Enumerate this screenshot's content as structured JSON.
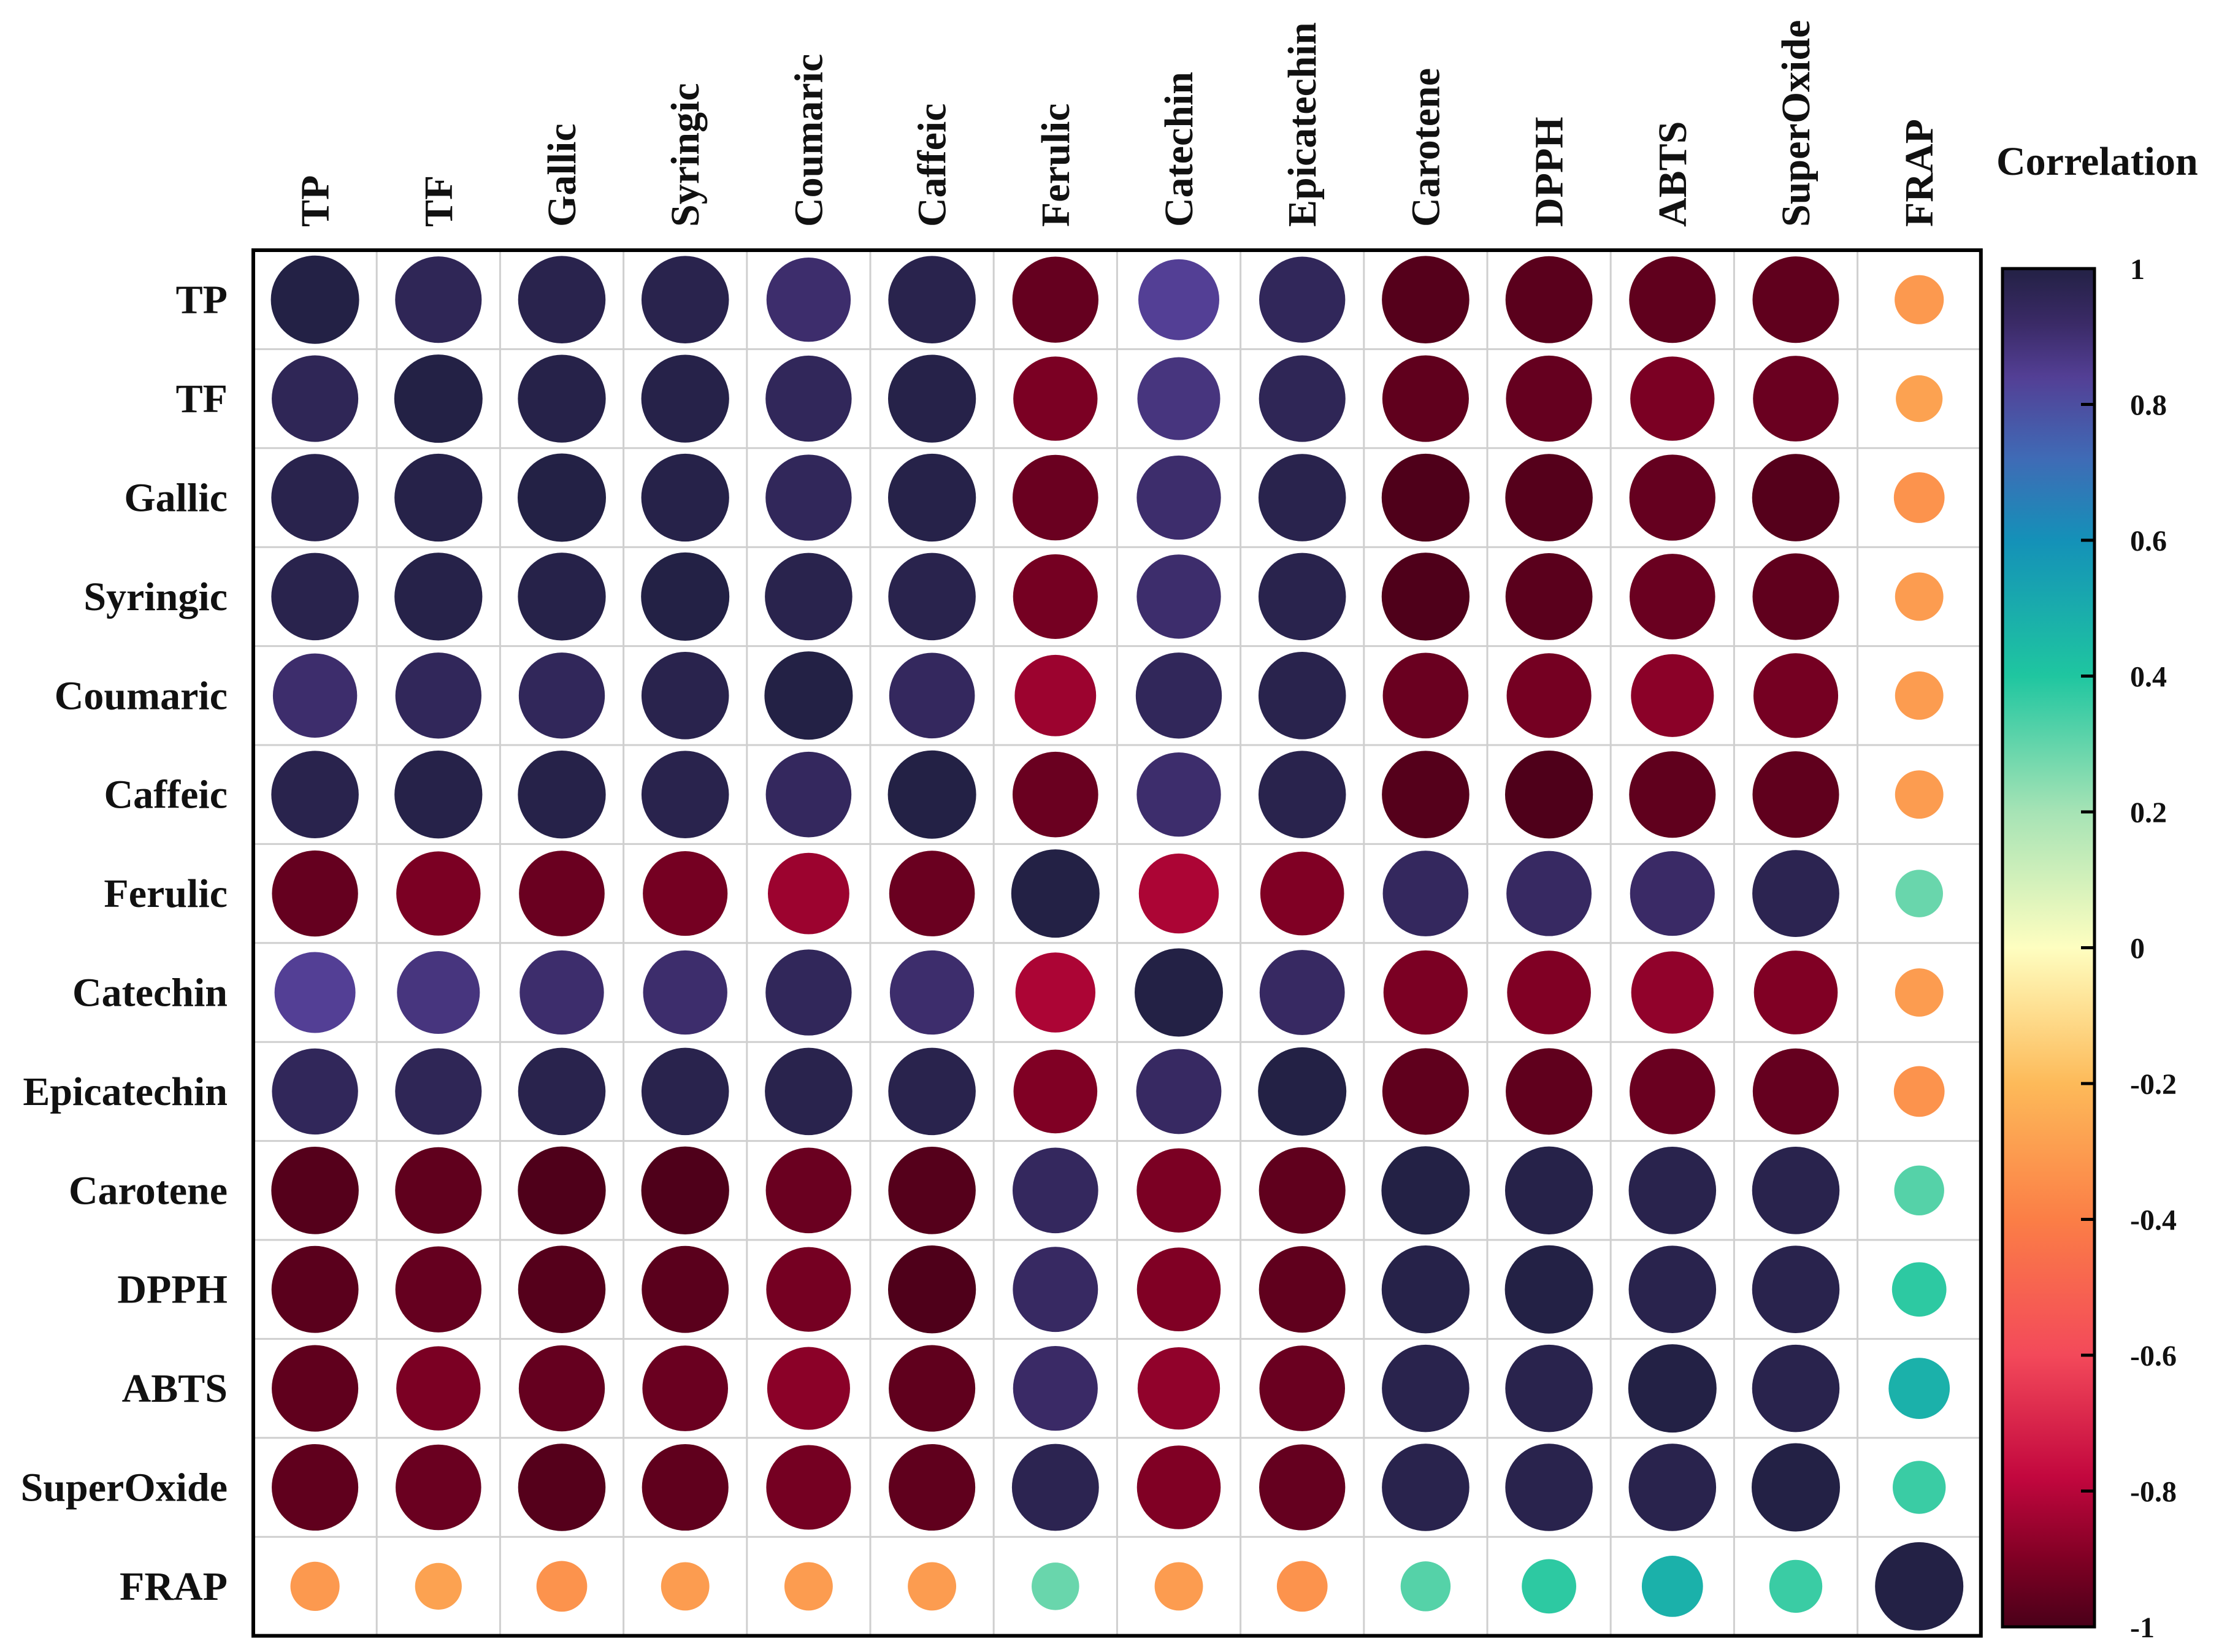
{
  "chart_data": {
    "type": "heatmap",
    "subtype": "correlation-circle-matrix",
    "variables": [
      "TP",
      "TF",
      "Gallic",
      "Syringic",
      "Coumaric",
      "Caffeic",
      "Ferulic",
      "Catechin",
      "Epicatechin",
      "Carotene",
      "DPPH",
      "ABTS",
      "SuperOxide",
      "FRAP"
    ],
    "matrix": [
      [
        1.0,
        0.96,
        0.98,
        0.98,
        0.91,
        0.98,
        -0.95,
        0.84,
        0.95,
        -0.98,
        -0.97,
        -0.96,
        -0.96,
        -0.31
      ],
      [
        0.96,
        1.0,
        0.99,
        0.99,
        0.95,
        0.99,
        -0.91,
        0.88,
        0.96,
        -0.96,
        -0.95,
        -0.91,
        -0.94,
        -0.28
      ],
      [
        0.98,
        0.99,
        1.0,
        0.99,
        0.95,
        0.99,
        -0.94,
        0.91,
        0.98,
        -0.99,
        -0.98,
        -0.95,
        -0.98,
        -0.33
      ],
      [
        0.98,
        0.99,
        0.99,
        1.0,
        0.98,
        0.98,
        -0.92,
        0.91,
        0.98,
        -0.99,
        -0.97,
        -0.94,
        -0.96,
        -0.3
      ],
      [
        0.91,
        0.95,
        0.95,
        0.98,
        1.0,
        0.94,
        -0.85,
        0.95,
        0.98,
        -0.94,
        -0.92,
        -0.88,
        -0.92,
        -0.3
      ],
      [
        0.98,
        0.99,
        0.99,
        0.98,
        0.94,
        1.0,
        -0.94,
        0.91,
        0.98,
        -0.98,
        -0.99,
        -0.96,
        -0.96,
        -0.3
      ],
      [
        -0.95,
        -0.91,
        -0.94,
        -0.92,
        -0.85,
        -0.94,
        1.0,
        -0.82,
        -0.9,
        0.94,
        0.93,
        0.92,
        0.97,
        0.29
      ],
      [
        0.84,
        0.88,
        0.91,
        0.91,
        0.95,
        0.91,
        -0.82,
        1.0,
        0.93,
        -0.91,
        -0.9,
        -0.87,
        -0.9,
        -0.3
      ],
      [
        0.95,
        0.96,
        0.98,
        0.98,
        0.98,
        0.98,
        -0.9,
        0.93,
        1.0,
        -0.96,
        -0.96,
        -0.94,
        -0.95,
        -0.33
      ],
      [
        -0.98,
        -0.96,
        -0.99,
        -0.99,
        -0.94,
        -0.98,
        0.94,
        -0.91,
        -0.96,
        1.0,
        0.99,
        0.98,
        0.98,
        0.32
      ],
      [
        -0.97,
        -0.95,
        -0.98,
        -0.97,
        -0.92,
        -0.99,
        0.93,
        -0.9,
        -0.96,
        0.99,
        1.0,
        0.98,
        0.98,
        0.38
      ],
      [
        -0.96,
        -0.91,
        -0.95,
        -0.94,
        -0.88,
        -0.96,
        0.92,
        -0.87,
        -0.94,
        0.98,
        0.98,
        1.0,
        0.98,
        0.48
      ],
      [
        -0.96,
        -0.94,
        -0.98,
        -0.96,
        -0.92,
        -0.96,
        0.97,
        -0.9,
        -0.95,
        0.98,
        0.98,
        0.98,
        1.0,
        0.36
      ],
      [
        -0.31,
        -0.28,
        -0.33,
        -0.3,
        -0.3,
        -0.3,
        0.29,
        -0.3,
        -0.33,
        0.32,
        0.38,
        0.48,
        0.36,
        1.0
      ]
    ],
    "legend": {
      "title": "Correlation",
      "range": [
        -1,
        1
      ],
      "ticks": [
        1,
        0.8,
        0.6,
        0.4,
        0.2,
        0,
        -0.2,
        -0.4,
        -0.6,
        -0.8,
        -1
      ],
      "tick_labels": [
        "1",
        "0.8",
        "0.6",
        "0.4",
        "0.2",
        "0",
        "-0.2",
        "-0.4",
        "-0.6",
        "-0.8",
        "-1"
      ],
      "placement": "right"
    },
    "colormap": {
      "stops": [
        {
          "v": -1.0,
          "color": "#4a0019"
        },
        {
          "v": -0.9,
          "color": "#800024"
        },
        {
          "v": -0.78,
          "color": "#c2073e"
        },
        {
          "v": -0.6,
          "color": "#f3495a"
        },
        {
          "v": -0.4,
          "color": "#fb7e46"
        },
        {
          "v": -0.2,
          "color": "#fdba59"
        },
        {
          "v": 0.0,
          "color": "#fefec0"
        },
        {
          "v": 0.2,
          "color": "#a6e3b5"
        },
        {
          "v": 0.4,
          "color": "#1fc6a0"
        },
        {
          "v": 0.6,
          "color": "#1491b8"
        },
        {
          "v": 0.72,
          "color": "#3f6bb6"
        },
        {
          "v": 0.84,
          "color": "#533f95"
        },
        {
          "v": 0.92,
          "color": "#3a2a66"
        },
        {
          "v": 1.0,
          "color": "#232145"
        }
      ]
    },
    "grid": true,
    "xlabel": "",
    "ylabel": ""
  }
}
